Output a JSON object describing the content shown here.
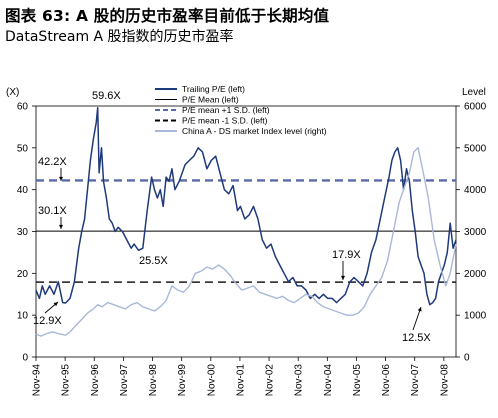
{
  "header": {
    "title": "图表  63: A 股的历史市盈率目前低于长期均值",
    "subtitle": "DataStream A 股指数的历史市盈率"
  },
  "chart_data": {
    "type": "line",
    "left_axis_unit": "(X)",
    "right_axis_unit": "Level",
    "left_ylim": [
      0,
      60
    ],
    "left_yticks": [
      0,
      10,
      20,
      30,
      40,
      50,
      60
    ],
    "right_ylim": [
      0,
      6000
    ],
    "right_yticks": [
      0,
      1000,
      2000,
      3000,
      4000,
      5000,
      6000
    ],
    "x_start": 1994.833,
    "x_end": 2009.25,
    "x_ticks": [
      "Nov-94",
      "Nov-95",
      "Nov-96",
      "Nov-97",
      "Nov-98",
      "Nov-99",
      "Nov-00",
      "Nov-01",
      "Nov-02",
      "Nov-03",
      "Nov-04",
      "Nov-05",
      "Nov-06",
      "Nov-07",
      "Nov-08"
    ],
    "legend": {
      "position": "top-center",
      "entries": [
        {
          "label": "Trailing P/E (left)",
          "color": "#1f3a7a",
          "style": "solid-thick"
        },
        {
          "label": "P/E Mean (left)",
          "color": "#000000",
          "style": "solid-thin"
        },
        {
          "label": "P/E mean +1 S.D. (left)",
          "color": "#5a6aa8",
          "style": "dashed"
        },
        {
          "label": "P/E mean -1 S.D. (left)",
          "color": "#000000",
          "style": "dashed"
        },
        {
          "label": "China A - DS market Index level (right)",
          "color": "#a9b8d8",
          "style": "solid"
        }
      ]
    },
    "reference_lines": [
      {
        "name": "P/E Mean (left)",
        "value": 30.1
      },
      {
        "name": "P/E mean +1 S.D. (left)",
        "value": 42.2
      },
      {
        "name": "P/E mean -1 S.D. (left)",
        "value": 17.9
      }
    ],
    "series": [
      {
        "name": "Trailing P/E (left)",
        "axis": "left",
        "x": [
          1994.833,
          1994.95,
          1995.05,
          1995.15,
          1995.3,
          1995.45,
          1995.6,
          1995.75,
          1995.85,
          1996.0,
          1996.15,
          1996.3,
          1996.4,
          1996.5,
          1996.6,
          1996.7,
          1996.8,
          1996.9,
          1996.95,
          1997.0,
          1997.08,
          1997.15,
          1997.25,
          1997.35,
          1997.45,
          1997.55,
          1997.65,
          1997.8,
          1997.95,
          1998.1,
          1998.2,
          1998.35,
          1998.5,
          1998.65,
          1998.8,
          1998.9,
          1999.0,
          1999.1,
          1999.2,
          1999.3,
          1999.4,
          1999.5,
          1999.6,
          1999.75,
          1999.85,
          1999.95,
          2000.1,
          2000.25,
          2000.4,
          2000.55,
          2000.7,
          2000.85,
          2001.0,
          2001.15,
          2001.3,
          2001.45,
          2001.6,
          2001.75,
          2001.85,
          2002.0,
          2002.15,
          2002.3,
          2002.45,
          2002.6,
          2002.75,
          2002.9,
          2003.05,
          2003.2,
          2003.35,
          2003.5,
          2003.65,
          2003.8,
          2003.95,
          2004.1,
          2004.25,
          2004.4,
          2004.55,
          2004.7,
          2004.85,
          2005.0,
          2005.15,
          2005.3,
          2005.45,
          2005.6,
          2005.75,
          2005.9,
          2006.05,
          2006.2,
          2006.35,
          2006.5,
          2006.65,
          2006.8,
          2006.95,
          2007.05,
          2007.15,
          2007.25,
          2007.35,
          2007.45,
          2007.55,
          2007.65,
          2007.75,
          2007.85,
          2007.95,
          2008.05,
          2008.15,
          2008.25,
          2008.35,
          2008.45,
          2008.55,
          2008.65,
          2008.75,
          2008.85,
          2008.95,
          2009.05,
          2009.15,
          2009.25
        ],
        "y": [
          16,
          14,
          17,
          15,
          17,
          15,
          18,
          13,
          12.9,
          14,
          18,
          26,
          30,
          33,
          40,
          47,
          52,
          56,
          59.6,
          44,
          50,
          42,
          38,
          33,
          32,
          30,
          31,
          30,
          28,
          26,
          27,
          25.5,
          26,
          35,
          43,
          40,
          38,
          40,
          36,
          43,
          42,
          45,
          40,
          42,
          44,
          46,
          47,
          48,
          50,
          49,
          45,
          47,
          48,
          44,
          40,
          39,
          41,
          35,
          36,
          33,
          34,
          36,
          33,
          28,
          26,
          27,
          24,
          22,
          20,
          18,
          19,
          17,
          17,
          16,
          14,
          15,
          14,
          15,
          14,
          14,
          13,
          14,
          15,
          17.9,
          19,
          18,
          17,
          20,
          25,
          28,
          33,
          38,
          43,
          47,
          49,
          50,
          47,
          40,
          45,
          42,
          35,
          30,
          24,
          22,
          20,
          15,
          12.5,
          13,
          14,
          18,
          20,
          22,
          25,
          32,
          26,
          28
        ]
      },
      {
        "name": "China A - DS market Index level (right)",
        "axis": "right",
        "x": [
          1994.833,
          1995.0,
          1995.2,
          1995.4,
          1995.6,
          1995.85,
          1996.0,
          1996.2,
          1996.4,
          1996.6,
          1996.8,
          1996.95,
          1997.1,
          1997.3,
          1997.5,
          1997.7,
          1997.9,
          1998.1,
          1998.3,
          1998.5,
          1998.7,
          1998.9,
          1999.1,
          1999.3,
          1999.5,
          1999.7,
          1999.9,
          2000.1,
          2000.3,
          2000.5,
          2000.7,
          2000.9,
          2001.1,
          2001.3,
          2001.5,
          2001.7,
          2001.9,
          2002.1,
          2002.3,
          2002.5,
          2002.7,
          2002.9,
          2003.1,
          2003.3,
          2003.5,
          2003.7,
          2003.9,
          2004.1,
          2004.3,
          2004.5,
          2004.7,
          2004.9,
          2005.1,
          2005.3,
          2005.5,
          2005.7,
          2005.9,
          2006.1,
          2006.3,
          2006.5,
          2006.7,
          2006.9,
          2007.1,
          2007.3,
          2007.5,
          2007.65,
          2007.8,
          2007.95,
          2008.1,
          2008.3,
          2008.5,
          2008.7,
          2008.9,
          2009.05,
          2009.25
        ],
        "y": [
          550,
          500,
          560,
          600,
          560,
          520,
          600,
          750,
          900,
          1050,
          1150,
          1250,
          1200,
          1300,
          1250,
          1200,
          1150,
          1250,
          1300,
          1200,
          1150,
          1100,
          1200,
          1350,
          1700,
          1600,
          1550,
          1700,
          2000,
          2050,
          2150,
          2100,
          2200,
          2100,
          1950,
          1750,
          1600,
          1650,
          1700,
          1550,
          1500,
          1450,
          1400,
          1450,
          1350,
          1300,
          1400,
          1500,
          1450,
          1300,
          1200,
          1150,
          1100,
          1050,
          1000,
          1000,
          1050,
          1200,
          1500,
          1700,
          1900,
          2300,
          3000,
          3700,
          4100,
          4400,
          4900,
          5000,
          4500,
          3800,
          2800,
          2200,
          1700,
          2000,
          2700
        ]
      }
    ],
    "annotations": [
      {
        "text": "59.6X"
      },
      {
        "text": "42.2X"
      },
      {
        "text": "30.1X"
      },
      {
        "text": "25.5X"
      },
      {
        "text": "17.9X"
      },
      {
        "text": "12.9X"
      },
      {
        "text": "12.5X"
      }
    ]
  }
}
